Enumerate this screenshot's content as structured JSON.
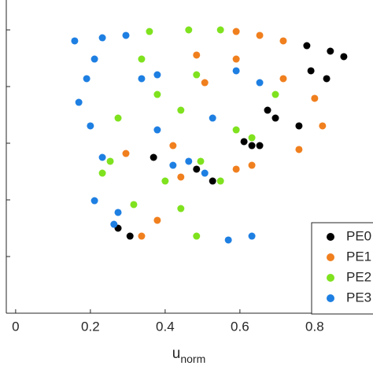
{
  "chart_data": {
    "type": "scatter",
    "xlabel": {
      "base": "u",
      "sub": "norm"
    },
    "xlim": [
      -0.025,
      0.956
    ],
    "xticks": [
      0,
      0.2,
      0.4,
      0.6,
      0.8
    ],
    "ylim": [
      0,
      5.53
    ],
    "yticks": [
      1,
      2,
      3,
      4,
      5
    ],
    "legend": "lower right",
    "series": [
      {
        "name": "PE0",
        "color": "#000000",
        "x": [
          0.779,
          0.842,
          0.878,
          0.79,
          0.832,
          0.674,
          0.695,
          0.611,
          0.632,
          0.274,
          0.306,
          0.369,
          0.484,
          0.527,
          0.758,
          0.653
        ],
        "y": [
          4.722,
          4.625,
          4.528,
          4.278,
          4.139,
          3.583,
          3.444,
          3.028,
          2.958,
          1.5,
          1.361,
          2.75,
          2.542,
          2.333,
          3.306,
          2.958
        ]
      },
      {
        "name": "PE1",
        "color": "#f07f1e",
        "x": [
          0.59,
          0.653,
          0.716,
          0.484,
          0.59,
          0.506,
          0.716,
          0.8,
          0.821,
          0.379,
          0.337,
          0.59,
          0.632,
          0.295,
          0.758,
          0.442,
          0.421
        ],
        "y": [
          4.972,
          4.903,
          4.806,
          4.556,
          4.486,
          4.069,
          4.139,
          3.792,
          3.306,
          1.639,
          1.361,
          2.542,
          2.611,
          2.819,
          2.889,
          2.403,
          2.958
        ]
      },
      {
        "name": "PE2",
        "color": "#7fe21e",
        "x": [
          0.358,
          0.463,
          0.548,
          0.337,
          0.379,
          0.442,
          0.484,
          0.59,
          0.632,
          0.253,
          0.232,
          0.316,
          0.442,
          0.484,
          0.548,
          0.4,
          0.495,
          0.274,
          0.695
        ],
        "y": [
          4.972,
          5.0,
          5.0,
          4.486,
          3.861,
          3.583,
          4.208,
          3.236,
          3.097,
          2.681,
          2.472,
          1.917,
          1.847,
          1.361,
          2.333,
          2.333,
          2.681,
          3.444,
          3.861
        ]
      },
      {
        "name": "PE3",
        "color": "#1e7fe2",
        "x": [
          0.158,
          0.232,
          0.295,
          0.211,
          0.19,
          0.169,
          0.2,
          0.232,
          0.274,
          0.263,
          0.569,
          0.632,
          0.421,
          0.463,
          0.506,
          0.337,
          0.379,
          0.59,
          0.653,
          0.211,
          0.527,
          0.379
        ],
        "y": [
          4.806,
          4.861,
          4.903,
          4.486,
          4.139,
          3.722,
          3.306,
          2.75,
          1.778,
          1.569,
          1.292,
          1.361,
          2.611,
          2.681,
          2.472,
          4.139,
          4.208,
          4.278,
          4.069,
          1.986,
          3.444,
          3.236
        ]
      }
    ]
  }
}
